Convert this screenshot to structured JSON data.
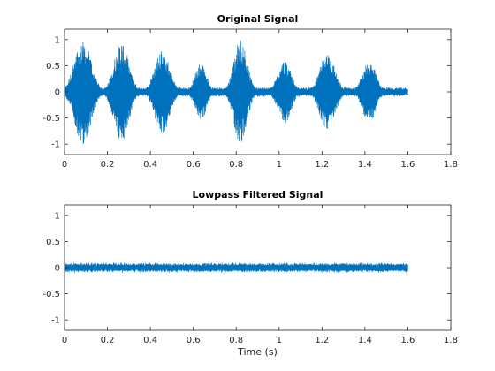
{
  "chart_data": [
    {
      "type": "line",
      "title": "Original Signal",
      "xlabel": "",
      "ylabel": "",
      "xlim": [
        0,
        1.8
      ],
      "ylim": [
        -1.2,
        1.2
      ],
      "xticks": [
        0,
        0.2,
        0.4,
        0.6,
        0.8,
        1,
        1.2,
        1.4,
        1.6,
        1.8
      ],
      "xtick_labels": [
        "0",
        "0.2",
        "0.4",
        "0.6",
        "0.8",
        "1",
        "1.2",
        "1.4",
        "1.6",
        "1.8"
      ],
      "yticks": [
        1,
        0.5,
        0,
        -0.5,
        -1
      ],
      "ytick_labels": [
        "1",
        "0.5",
        "0",
        "-0.5",
        "-1"
      ],
      "grid": false,
      "series_color": "#0072BD",
      "signal": {
        "duration": 1.6,
        "baseline_amplitude": 0.1,
        "bursts": [
          {
            "center": 0.085,
            "width": 0.1,
            "amplitude": 1.0
          },
          {
            "center": 0.265,
            "width": 0.09,
            "amplitude": 0.95
          },
          {
            "center": 0.455,
            "width": 0.09,
            "amplitude": 0.8
          },
          {
            "center": 0.635,
            "width": 0.07,
            "amplitude": 0.55
          },
          {
            "center": 0.82,
            "width": 0.08,
            "amplitude": 1.0
          },
          {
            "center": 1.025,
            "width": 0.08,
            "amplitude": 0.6
          },
          {
            "center": 1.225,
            "width": 0.09,
            "amplitude": 0.75
          },
          {
            "center": 1.42,
            "width": 0.08,
            "amplitude": 0.6
          }
        ]
      }
    },
    {
      "type": "line",
      "title": "Lowpass Filtered Signal",
      "xlabel": "Time (s)",
      "ylabel": "",
      "xlim": [
        0,
        1.8
      ],
      "ylim": [
        -1.2,
        1.2
      ],
      "xticks": [
        0,
        0.2,
        0.4,
        0.6,
        0.8,
        1,
        1.2,
        1.4,
        1.6,
        1.8
      ],
      "xtick_labels": [
        "0",
        "0.2",
        "0.4",
        "0.6",
        "0.8",
        "1",
        "1.2",
        "1.4",
        "1.6",
        "1.8"
      ],
      "yticks": [
        1,
        0.5,
        0,
        -0.5,
        -1
      ],
      "ytick_labels": [
        "1",
        "0.5",
        "0",
        "-0.5",
        "-1"
      ],
      "grid": false,
      "series_color": "#0072BD",
      "signal": {
        "duration": 1.6,
        "baseline_amplitude": 0.1,
        "bursts": []
      }
    }
  ]
}
